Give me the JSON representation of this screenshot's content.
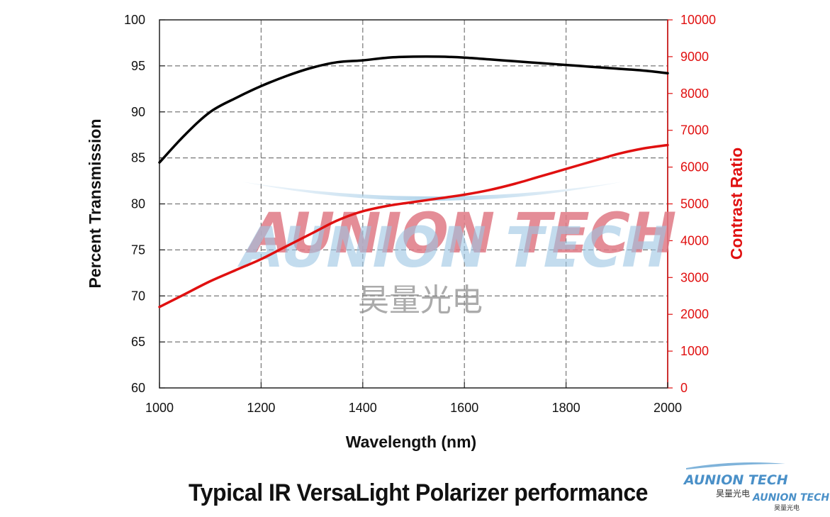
{
  "caption": "Typical IR VersaLight Polarizer performance",
  "watermark": {
    "text": "AUNION TECH",
    "cn": "昊量光电",
    "logo_text": "AUNION TECH",
    "logo_cn": "昊量光电",
    "logo_text_2": "AUNION TECH",
    "logo_cn_2": "昊量光电"
  },
  "chart_data": {
    "type": "line",
    "xlabel": "Wavelength (nm)",
    "ylabel": "Percent Transmission",
    "y2label": "Contrast Ratio",
    "xlim": [
      1000,
      2000
    ],
    "ylim": [
      60,
      100
    ],
    "y2lim": [
      0,
      10000
    ],
    "xticks": [
      "1000",
      "1200",
      "1400",
      "1600",
      "1800",
      "2000"
    ],
    "yticks": [
      "60",
      "65",
      "70",
      "75",
      "80",
      "85",
      "90",
      "95",
      "100"
    ],
    "y2ticks": [
      "0",
      "1000",
      "2000",
      "3000",
      "4000",
      "5000",
      "6000",
      "7000",
      "8000",
      "9000",
      "10000"
    ],
    "grid": true,
    "series": [
      {
        "axis": "left",
        "color": "#000000",
        "x": [
          1000,
          1050,
          1100,
          1150,
          1200,
          1250,
          1300,
          1350,
          1400,
          1450,
          1500,
          1550,
          1600,
          1650,
          1700,
          1750,
          1800,
          1850,
          1900,
          1950,
          2000
        ],
        "y": [
          84.5,
          87.5,
          90.0,
          91.5,
          92.8,
          93.9,
          94.8,
          95.4,
          95.6,
          95.9,
          96.0,
          96.0,
          95.9,
          95.7,
          95.5,
          95.3,
          95.1,
          94.9,
          94.7,
          94.5,
          94.2
        ]
      },
      {
        "axis": "right",
        "color": "#e01010",
        "x": [
          1000,
          1050,
          1100,
          1150,
          1200,
          1250,
          1300,
          1350,
          1400,
          1450,
          1500,
          1550,
          1600,
          1650,
          1700,
          1750,
          1800,
          1850,
          1900,
          1950,
          2000
        ],
        "y": [
          2200,
          2550,
          2900,
          3200,
          3500,
          3850,
          4200,
          4550,
          4800,
          4950,
          5050,
          5150,
          5250,
          5380,
          5550,
          5750,
          5950,
          6150,
          6350,
          6500,
          6600
        ]
      }
    ]
  }
}
